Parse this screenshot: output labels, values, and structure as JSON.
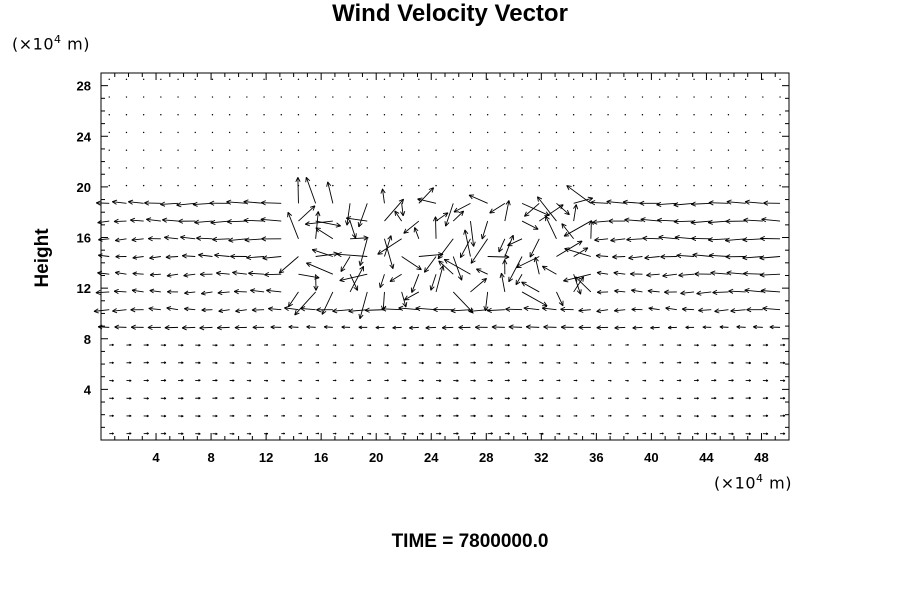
{
  "chart_data": {
    "type": "vector-field",
    "title": "Wind Velocity Vector",
    "xlabel": "",
    "ylabel": "Height",
    "x_unit_base": "(×10",
    "x_unit_exp": "4",
    "x_unit_tail": " m)",
    "y_unit_base": "(×10",
    "y_unit_exp": "4",
    "y_unit_tail": " m)",
    "xlim": [
      0,
      50
    ],
    "ylim": [
      0,
      29
    ],
    "xticks": [
      4,
      8,
      12,
      16,
      20,
      24,
      28,
      32,
      36,
      40,
      44,
      48
    ],
    "yticks": [
      4,
      8,
      12,
      16,
      20,
      24,
      28
    ],
    "footer": "TIME = 7800000.0",
    "grid": false,
    "vector_color": "#000000",
    "field": {
      "x_start": 0,
      "x_step": 1.25,
      "x_count": 40,
      "y_start": 0.5,
      "y_step": 1.0,
      "y_count": 21,
      "notes": "Vectors sampled on a regular grid; a jet band of strong westward flow spans heights ~10–20, with weak eastward flow below ~8 and near-calm above 20."
    }
  }
}
